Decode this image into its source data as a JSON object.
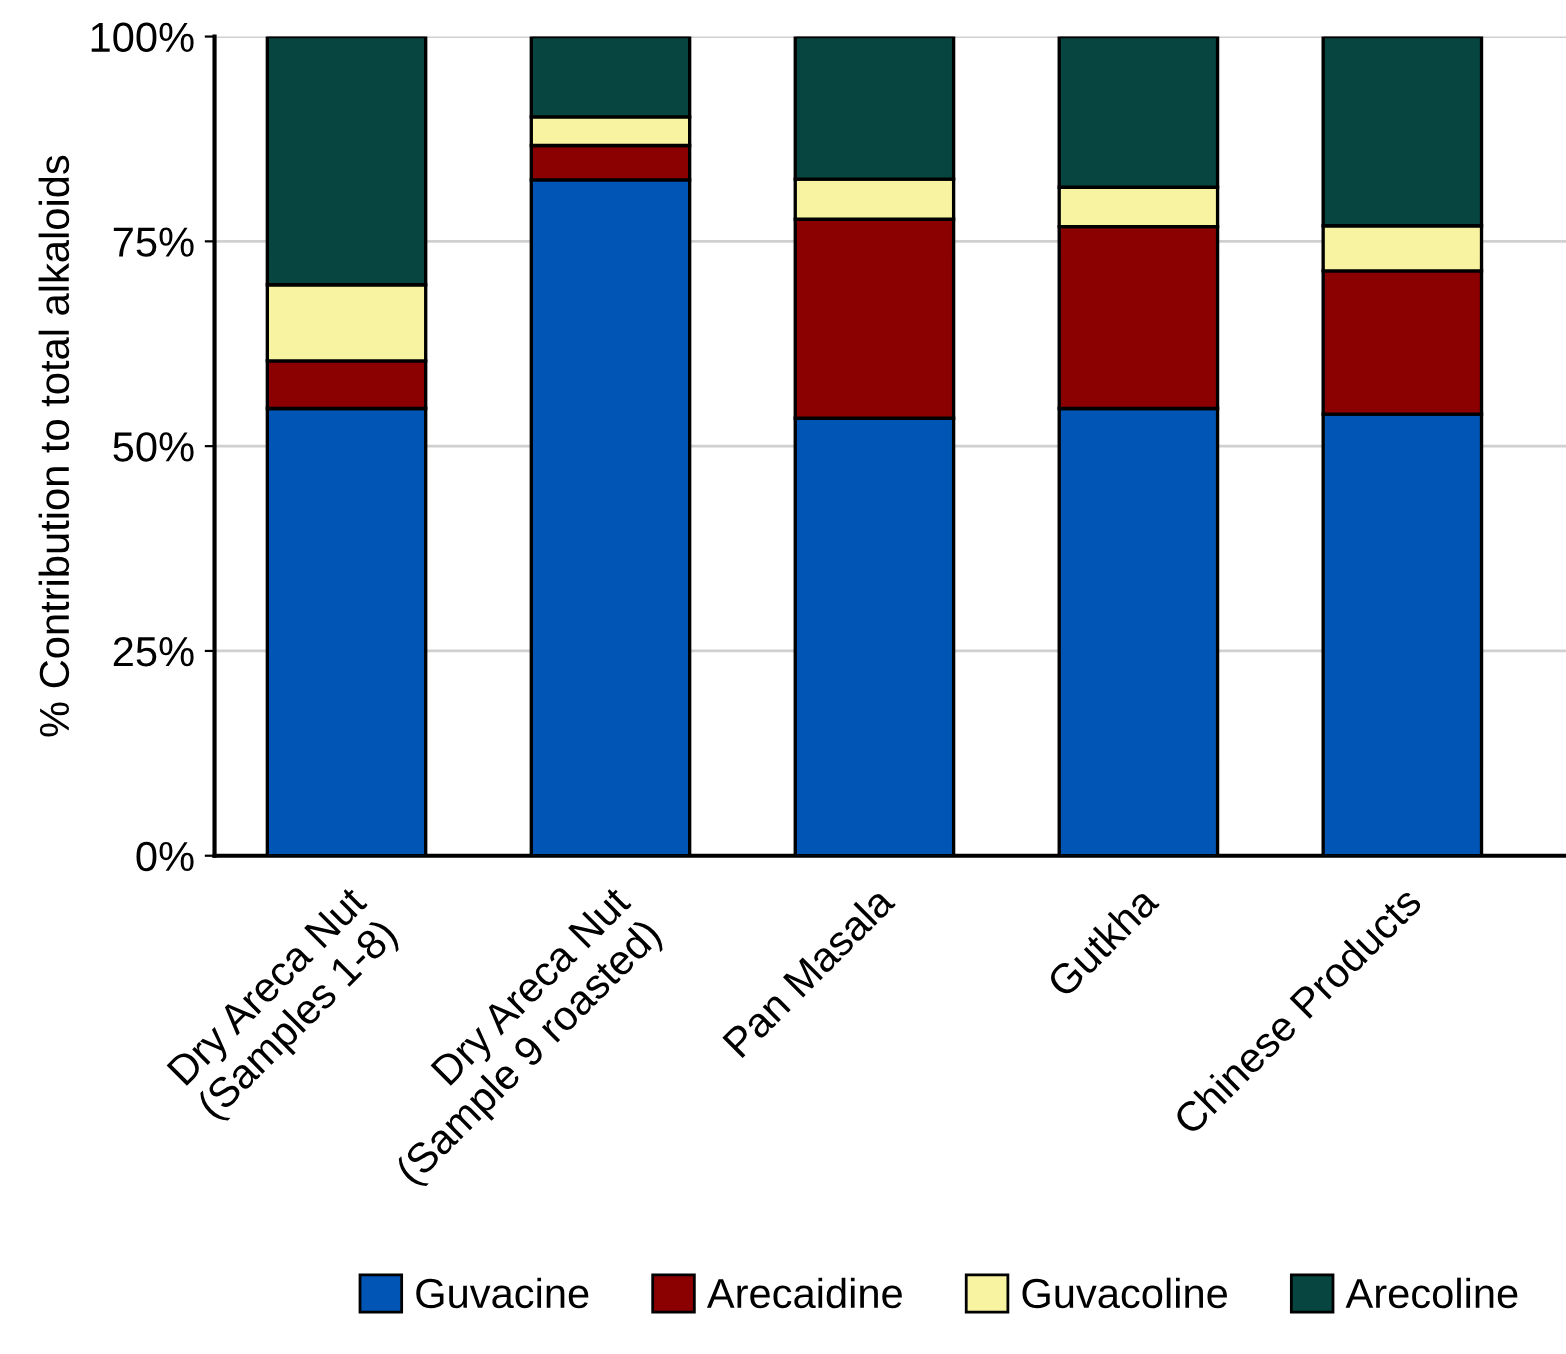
{
  "chart_data": {
    "type": "bar",
    "stacked": true,
    "ylabel": "% Contribution to total alkaloids",
    "categories": [
      "Dry Areca Nut\n(Samples 1-8)",
      "Dry Areca Nut\n(Sample 9 roasted)",
      "Pan Masala",
      "Gutkha",
      "Chinese Products"
    ],
    "series": [
      {
        "name": "Guvacine",
        "color": "#0055b5",
        "values": [
          54.6,
          82.5,
          53.4,
          54.6,
          53.9
        ]
      },
      {
        "name": "Arecaidine",
        "color": "#8b0000",
        "values": [
          5.8,
          4.2,
          24.3,
          22.2,
          17.5
        ]
      },
      {
        "name": "Guvacoline",
        "color": "#f7f3a0",
        "values": [
          9.3,
          3.5,
          4.9,
          4.8,
          5.5
        ]
      },
      {
        "name": "Arecoline",
        "color": "#064540",
        "values": [
          30.3,
          9.8,
          17.4,
          18.4,
          23.1
        ]
      }
    ],
    "ylim": [
      0,
      100
    ],
    "yticks": [
      {
        "value": 0,
        "label": "0%"
      },
      {
        "value": 25,
        "label": "25%"
      },
      {
        "value": 50,
        "label": "50%"
      },
      {
        "value": 75,
        "label": "75%"
      },
      {
        "value": 100,
        "label": "100%"
      }
    ],
    "grid": "y",
    "legend": "bottom"
  }
}
